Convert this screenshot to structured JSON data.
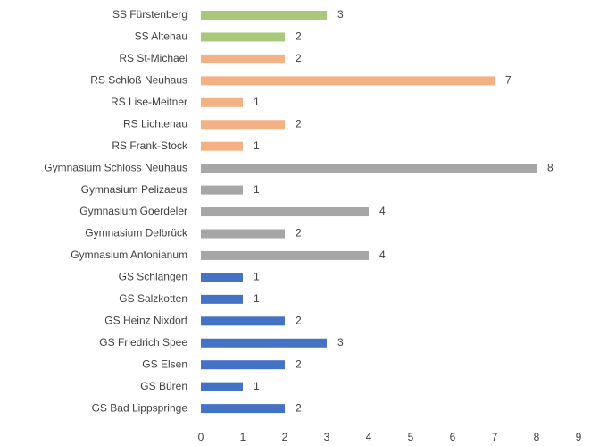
{
  "chart_data": {
    "type": "bar",
    "orientation": "horizontal",
    "categories": [
      "SS Fürstenberg",
      "SS Altenau",
      "RS St-Michael",
      "RS Schloß Neuhaus",
      "RS Lise-Meitner",
      "RS Lichtenau",
      "RS Frank-Stock",
      "Gymnasium Schloss Neuhaus",
      "Gymnasium Pelizaeus",
      "Gymnasium Goerdeler",
      "Gymnasium Delbrück",
      "Gymnasium Antonianum",
      "GS Schlangen",
      "GS Salzkotten",
      "GS Heinz Nixdorf",
      "GS Friedrich Spee",
      "GS Elsen",
      "GS Büren",
      "GS Bad Lippspringe"
    ],
    "values": [
      3,
      2,
      2,
      7,
      1,
      2,
      1,
      8,
      1,
      4,
      2,
      4,
      1,
      1,
      2,
      3,
      2,
      1,
      2
    ],
    "colors": [
      "#a9c97a",
      "#a9c97a",
      "#f4b183",
      "#f4b183",
      "#f4b183",
      "#f4b183",
      "#f4b183",
      "#a6a6a6",
      "#a6a6a6",
      "#a6a6a6",
      "#a6a6a6",
      "#a6a6a6",
      "#4472c4",
      "#4472c4",
      "#4472c4",
      "#4472c4",
      "#4472c4",
      "#4472c4",
      "#4472c4"
    ],
    "xlim": [
      0,
      9
    ],
    "xticks": [
      0,
      1,
      2,
      3,
      4,
      5,
      6,
      7,
      8,
      9
    ],
    "grid": false
  }
}
